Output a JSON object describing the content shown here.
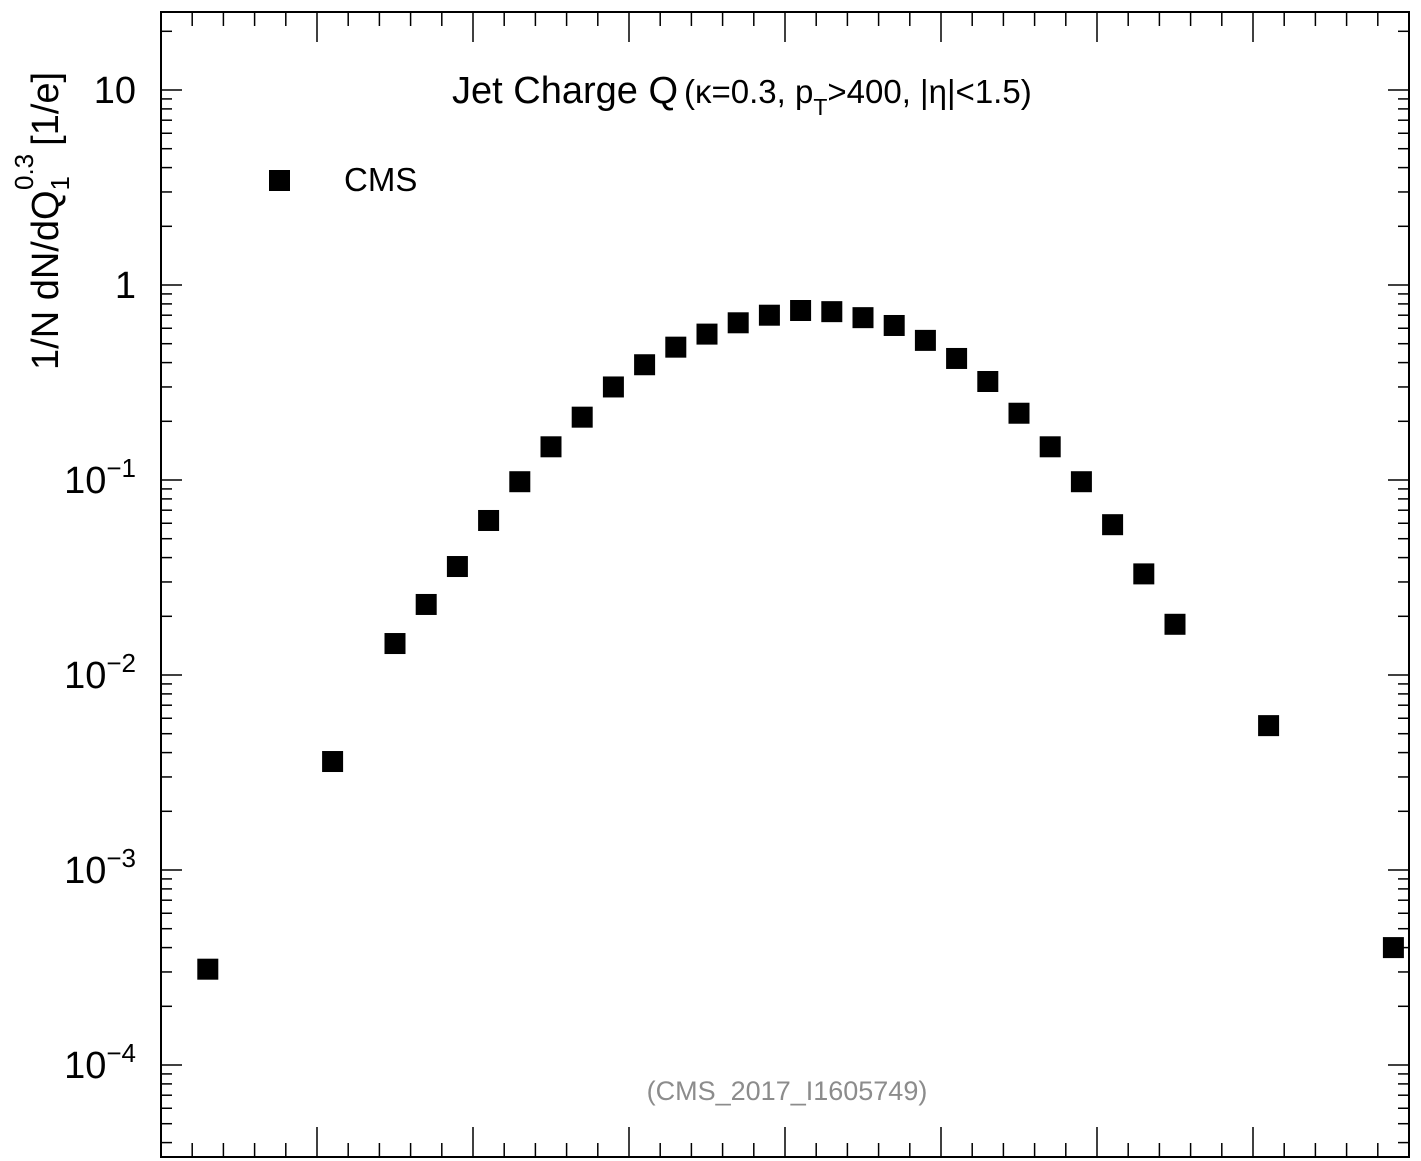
{
  "chart_data": {
    "type": "scatter",
    "title": {
      "main": "Jet Charge Q",
      "params_open": "(κ=0.3, p",
      "params_sub": "T",
      "params_rest": ">400, |η|<1.5)"
    },
    "ylabel": {
      "main": "1/N dN/dQ",
      "sub": "1",
      "sup": "0.3",
      "unit": "[1/e]"
    },
    "yscale": "log",
    "ylim": [
      3e-05,
      25
    ],
    "y_ticks": [
      {
        "value": 10,
        "base": "10",
        "exp": ""
      },
      {
        "value": 1,
        "base": "1",
        "exp": ""
      },
      {
        "value": 0.1,
        "base": "10",
        "exp": "−1"
      },
      {
        "value": 0.01,
        "base": "10",
        "exp": "−2"
      },
      {
        "value": 0.001,
        "base": "10",
        "exp": "−3"
      },
      {
        "value": 0.0001,
        "base": "10",
        "exp": "−4"
      }
    ],
    "x_tick_labels_visible": false,
    "legend": {
      "position": "top-left",
      "entries": [
        "CMS"
      ]
    },
    "watermark": "(CMS_2017_I1605749)",
    "series": [
      {
        "name": "CMS",
        "marker": "square",
        "color": "#000000",
        "x": [
          -1.85,
          -1.45,
          -1.25,
          -1.15,
          -1.05,
          -0.95,
          -0.85,
          -0.75,
          -0.65,
          -0.55,
          -0.45,
          -0.35,
          -0.25,
          -0.15,
          -0.05,
          0.05,
          0.15,
          0.25,
          0.35,
          0.45,
          0.55,
          0.65,
          0.75,
          0.85,
          0.95,
          1.05,
          1.15,
          1.25,
          1.55,
          1.95
        ],
        "y": [
          0.00031,
          0.0036,
          0.0145,
          0.023,
          0.036,
          0.062,
          0.098,
          0.148,
          0.21,
          0.3,
          0.39,
          0.48,
          0.56,
          0.64,
          0.7,
          0.74,
          0.73,
          0.68,
          0.62,
          0.52,
          0.42,
          0.32,
          0.22,
          0.148,
          0.098,
          0.059,
          0.033,
          0.0182,
          0.0055,
          0.0004
        ]
      }
    ]
  }
}
